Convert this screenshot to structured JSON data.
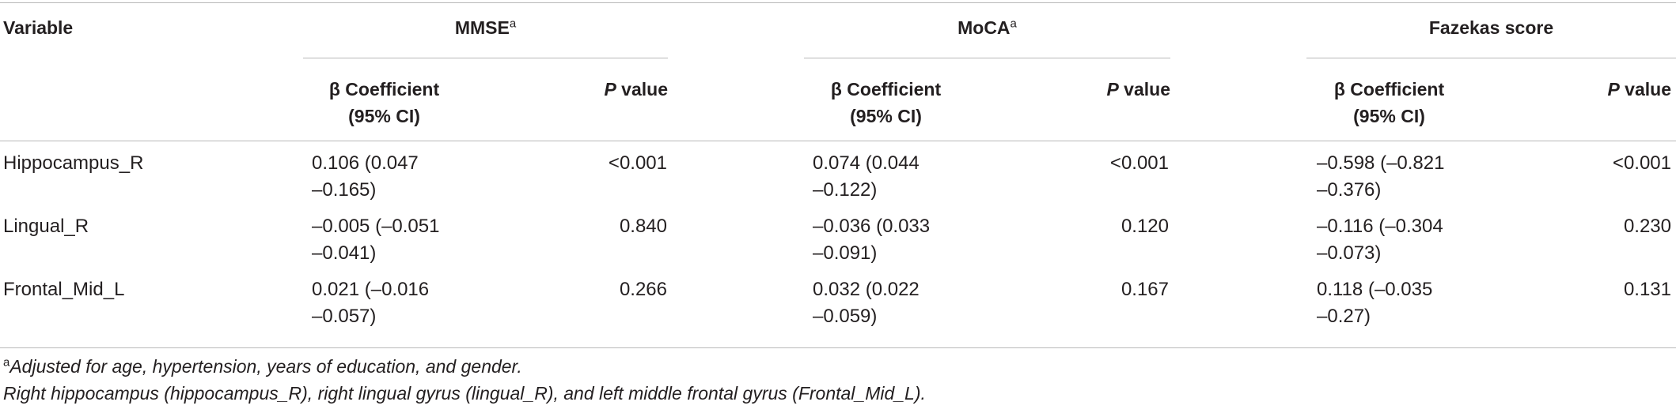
{
  "table": {
    "headers": {
      "variable": "Variable",
      "groups": [
        {
          "name": "MMSE",
          "sup": "a"
        },
        {
          "name": "MoCA",
          "sup": "a"
        },
        {
          "name": "Fazekas score",
          "sup": ""
        }
      ],
      "beta_line1": "β Coefficient",
      "beta_line2": "(95% CI)",
      "p_italic": "P",
      "p_rest": " value"
    },
    "rows": [
      {
        "variable": "Hippocampus_R",
        "cells": [
          {
            "beta_a": "0.106 (0.047",
            "beta_b": "–0.165)",
            "p": "<0.001"
          },
          {
            "beta_a": "0.074 (0.044",
            "beta_b": "–0.122)",
            "p": "<0.001"
          },
          {
            "beta_a": "–0.598 (–0.821",
            "beta_b": "–0.376)",
            "p": "<0.001"
          }
        ]
      },
      {
        "variable": "Lingual_R",
        "cells": [
          {
            "beta_a": "–0.005 (–0.051",
            "beta_b": "–0.041)",
            "p": "0.840"
          },
          {
            "beta_a": "–0.036 (0.033",
            "beta_b": "–0.091)",
            "p": "0.120"
          },
          {
            "beta_a": "–0.116 (–0.304",
            "beta_b": "–0.073)",
            "p": "0.230"
          }
        ]
      },
      {
        "variable": "Frontal_Mid_L",
        "cells": [
          {
            "beta_a": "0.021 (–0.016",
            "beta_b": "–0.057)",
            "p": "0.266"
          },
          {
            "beta_a": "0.032 (0.022",
            "beta_b": "–0.059)",
            "p": "0.167"
          },
          {
            "beta_a": "0.118 (–0.035",
            "beta_b": "–0.27)",
            "p": "0.131"
          }
        ]
      }
    ]
  },
  "footnotes": {
    "a_mark": "a",
    "a_text": "Adjusted for age, hypertension, years of education, and gender.",
    "abbrev": "Right hippocampus (hippocampus_R), right lingual gyrus (lingual_R), and left middle frontal gyrus (Frontal_Mid_L)."
  }
}
